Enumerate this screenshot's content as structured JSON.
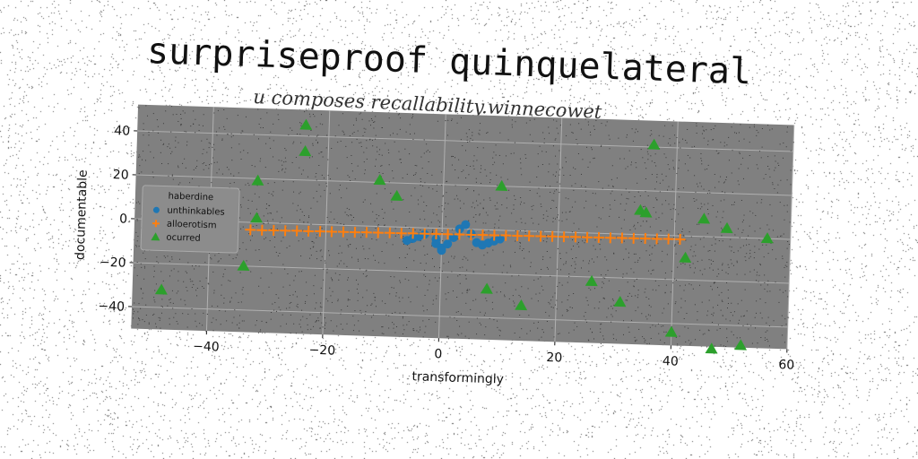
{
  "title": "surpriseproof quinquelateral",
  "subtitle": "u composes recallability.winnecowet",
  "chart_data": {
    "type": "scatter",
    "xlabel": "transformingly",
    "ylabel": "documentable",
    "xlim": [
      -53,
      60
    ],
    "ylim": [
      -50,
      52
    ],
    "xticks": [
      -40,
      -20,
      0,
      20,
      40,
      60
    ],
    "yticks": [
      -40,
      -20,
      0,
      20,
      40
    ],
    "xtick_labels": [
      "−40",
      "−20",
      "0",
      "20",
      "40",
      "60"
    ],
    "ytick_labels": [
      "−40",
      "−20",
      "0",
      "20",
      "40"
    ],
    "grid": true,
    "legend": {
      "title": "haberdine",
      "position": "center-left"
    },
    "colors": {
      "plot_bg": "#808080",
      "grid": "#b0b0b0"
    },
    "series": [
      {
        "name": "unthinkables",
        "marker": "circle",
        "color": "#1f77b4",
        "points": [
          [
            -6,
            -6
          ],
          [
            -5,
            -5
          ],
          [
            -4,
            -4
          ],
          [
            -3,
            -3
          ],
          [
            -1,
            -5
          ],
          [
            -1,
            -7
          ],
          [
            0,
            -9
          ],
          [
            0,
            -10
          ],
          [
            1,
            -7
          ],
          [
            2,
            -4
          ],
          [
            3,
            0
          ],
          [
            4,
            2
          ],
          [
            5,
            -2
          ],
          [
            6,
            -6
          ],
          [
            7,
            -7
          ],
          [
            8,
            -6
          ],
          [
            9,
            -5
          ],
          [
            10,
            -4
          ]
        ]
      },
      {
        "name": "alloerotism",
        "marker": "plus",
        "color": "#ff7f0e",
        "points": [
          [
            -33,
            -3.4
          ],
          [
            -31,
            -3.4
          ],
          [
            -29,
            -3.3
          ],
          [
            -27,
            -3.3
          ],
          [
            -25,
            -3.2
          ],
          [
            -23,
            -3.2
          ],
          [
            -21,
            -3.1
          ],
          [
            -19,
            -3.1
          ],
          [
            -17,
            -3.0
          ],
          [
            -15,
            -3.0
          ],
          [
            -13,
            -2.9
          ],
          [
            -11,
            -2.9
          ],
          [
            -9,
            -2.8
          ],
          [
            -7,
            -2.8
          ],
          [
            -5,
            -2.7
          ],
          [
            -3,
            -2.7
          ],
          [
            -1,
            -2.6
          ],
          [
            1,
            -2.6
          ],
          [
            3,
            -2.5
          ],
          [
            5,
            -2.5
          ],
          [
            7,
            -2.4
          ],
          [
            9,
            -2.4
          ],
          [
            11,
            -2.3
          ],
          [
            13,
            -2.3
          ],
          [
            15,
            -2.2
          ],
          [
            17,
            -2.2
          ],
          [
            19,
            -2.1
          ],
          [
            21,
            -2.1
          ],
          [
            23,
            -2.0
          ],
          [
            25,
            -2.0
          ],
          [
            27,
            -1.9
          ],
          [
            29,
            -1.9
          ],
          [
            31,
            -1.8
          ],
          [
            33,
            -1.8
          ],
          [
            35,
            -1.7
          ],
          [
            37,
            -1.7
          ],
          [
            39,
            -1.6
          ],
          [
            41,
            -1.6
          ]
        ]
      },
      {
        "name": "ocurred",
        "marker": "triangle",
        "color": "#2ca02c",
        "points": [
          [
            -48,
            -32
          ],
          [
            -34,
            -20
          ],
          [
            -32,
            19
          ],
          [
            -32,
            2
          ],
          [
            -24,
            45
          ],
          [
            -24,
            33
          ],
          [
            -11,
            21
          ],
          [
            -8,
            14
          ],
          [
            8,
            -27
          ],
          [
            10,
            20
          ],
          [
            14,
            -34
          ],
          [
            26,
            -22
          ],
          [
            31,
            -31
          ],
          [
            34,
            11
          ],
          [
            35,
            10
          ],
          [
            36,
            41
          ],
          [
            40,
            -44
          ],
          [
            42,
            -10
          ],
          [
            45,
            8
          ],
          [
            47,
            -51
          ],
          [
            49,
            4
          ],
          [
            52,
            -49
          ],
          [
            56,
            0
          ]
        ]
      }
    ]
  }
}
